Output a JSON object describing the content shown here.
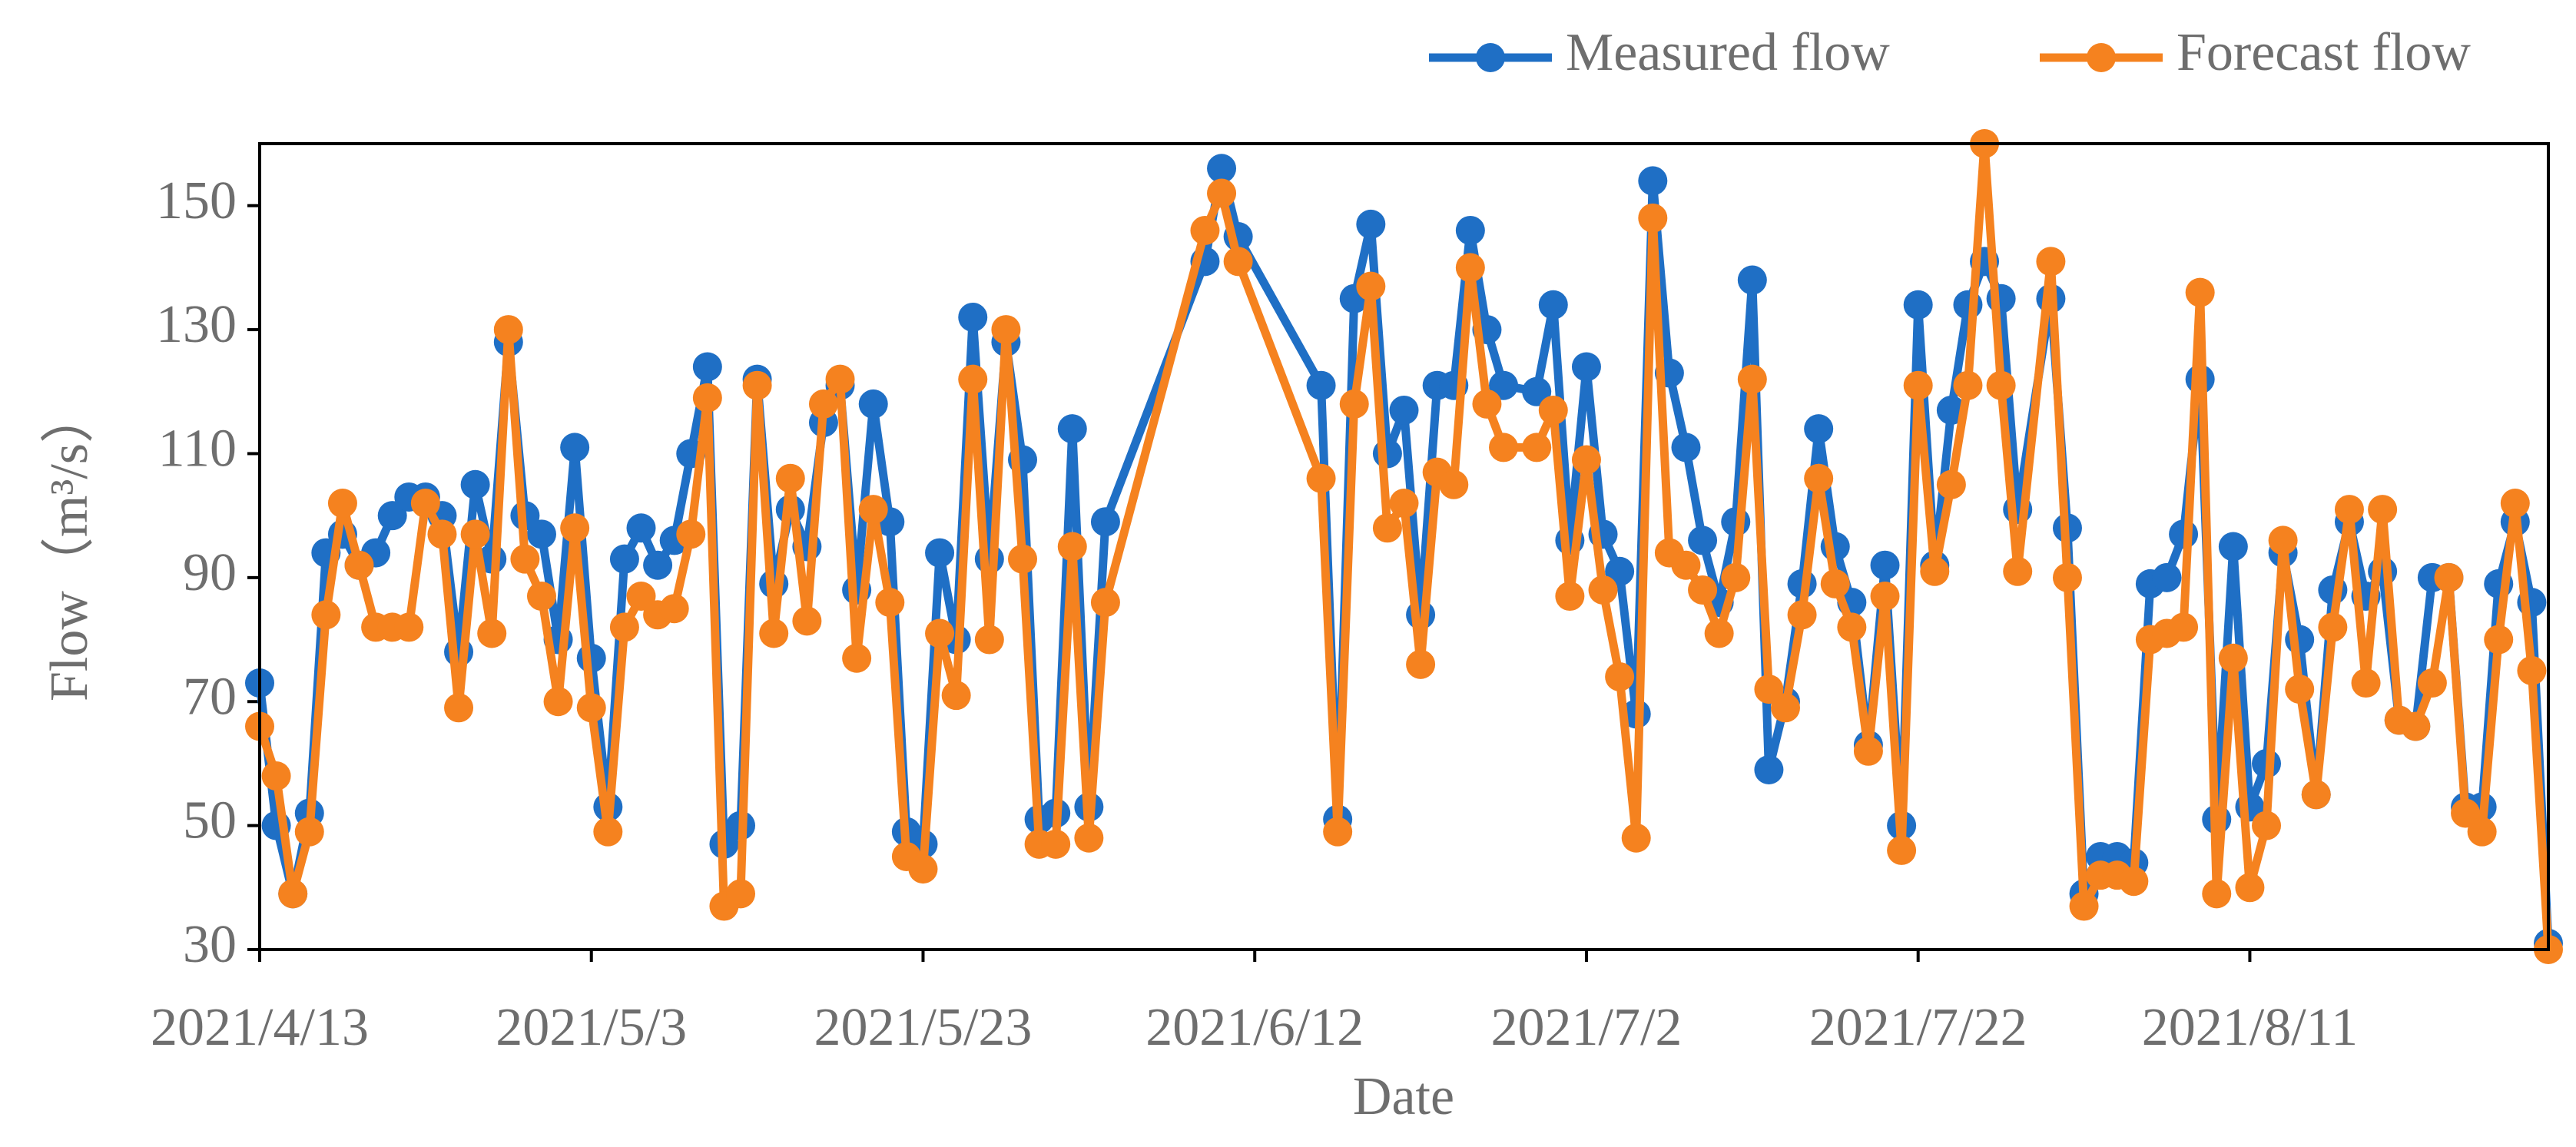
{
  "chart_data": {
    "type": "line",
    "x_label": "Date",
    "y_label": "Flow（m³/s）",
    "x": [
      "2021/4/13",
      "2021/4/14",
      "2021/4/15",
      "2021/4/16",
      "2021/4/17",
      "2021/4/18",
      "2021/4/19",
      "2021/4/20",
      "2021/4/21",
      "2021/4/22",
      "2021/4/23",
      "2021/4/24",
      "2021/4/25",
      "2021/4/26",
      "2021/4/27",
      "2021/4/28",
      "2021/4/29",
      "2021/4/30",
      "2021/5/1",
      "2021/5/2",
      "2021/5/3",
      "2021/5/4",
      "2021/5/5",
      "2021/5/6",
      "2021/5/7",
      "2021/5/8",
      "2021/5/9",
      "2021/5/10",
      "2021/5/11",
      "2021/5/12",
      "2021/5/13",
      "2021/5/14",
      "2021/5/15",
      "2021/5/16",
      "2021/5/17",
      "2021/5/18",
      "2021/5/19",
      "2021/5/20",
      "2021/5/21",
      "2021/5/22",
      "2021/5/23",
      "2021/5/24",
      "2021/5/25",
      "2021/5/26",
      "2021/5/27",
      "2021/5/28",
      "2021/5/29",
      "2021/5/30",
      "2021/5/31",
      "2021/6/1",
      "2021/6/2",
      "2021/6/3",
      "2021/6/9",
      "2021/6/10",
      "2021/6/11",
      "2021/6/16",
      "2021/6/17",
      "2021/6/18",
      "2021/6/19",
      "2021/6/20",
      "2021/6/21",
      "2021/6/22",
      "2021/6/23",
      "2021/6/24",
      "2021/6/25",
      "2021/6/26",
      "2021/6/27",
      "2021/6/29",
      "2021/6/30",
      "2021/7/1",
      "2021/7/2",
      "2021/7/3",
      "2021/7/4",
      "2021/7/5",
      "2021/7/6",
      "2021/7/7",
      "2021/7/8",
      "2021/7/9",
      "2021/7/10",
      "2021/7/11",
      "2021/7/12",
      "2021/7/13",
      "2021/7/14",
      "2021/7/15",
      "2021/7/16",
      "2021/7/17",
      "2021/7/18",
      "2021/7/19",
      "2021/7/20",
      "2021/7/21",
      "2021/7/22",
      "2021/7/23",
      "2021/7/24",
      "2021/7/25",
      "2021/7/26",
      "2021/7/27",
      "2021/7/28",
      "2021/7/30",
      "2021/7/31",
      "2021/8/1",
      "2021/8/2",
      "2021/8/3",
      "2021/8/4",
      "2021/8/5",
      "2021/8/6",
      "2021/8/7",
      "2021/8/8",
      "2021/8/9",
      "2021/8/10",
      "2021/8/11",
      "2021/8/12",
      "2021/8/13",
      "2021/8/14",
      "2021/8/15",
      "2021/8/16",
      "2021/8/17",
      "2021/8/18",
      "2021/8/19",
      "2021/8/20",
      "2021/8/21",
      "2021/8/22",
      "2021/8/23",
      "2021/8/24",
      "2021/8/25",
      "2021/8/26",
      "2021/8/27",
      "2021/8/28",
      "2021/8/29"
    ],
    "series": [
      {
        "name": "Measured flow",
        "color": "#1f6fc5",
        "values": [
          73,
          50,
          39,
          52,
          94,
          97,
          92,
          94,
          100,
          103,
          103,
          100,
          78,
          105,
          93,
          128,
          100,
          97,
          80,
          111,
          77,
          53,
          93,
          98,
          92,
          96,
          110,
          124,
          47,
          50,
          122,
          89,
          101,
          95,
          115,
          121,
          88,
          118,
          99,
          49,
          47,
          94,
          80,
          132,
          93,
          128,
          109,
          51,
          52,
          114,
          53,
          99,
          141,
          156,
          145,
          121,
          51,
          135,
          147,
          110,
          117,
          84,
          121,
          121,
          146,
          130,
          121,
          120,
          134,
          96,
          124,
          97,
          91,
          68,
          154,
          123,
          111,
          96,
          86,
          99,
          138,
          59,
          70,
          89,
          114,
          95,
          86,
          63,
          92,
          50,
          134,
          92,
          117,
          134,
          141,
          135,
          101,
          135,
          98,
          39,
          45,
          45,
          44,
          89,
          90,
          97,
          122,
          51,
          95,
          53,
          60,
          94,
          80,
          55,
          88,
          99,
          87,
          91,
          67,
          66,
          90,
          90,
          53,
          53,
          89,
          99,
          86,
          31
        ]
      },
      {
        "name": "Forecast flow",
        "color": "#f5821f",
        "values": [
          66,
          58,
          39,
          49,
          84,
          102,
          92,
          82,
          82,
          82,
          102,
          97,
          69,
          97,
          81,
          130,
          93,
          87,
          70,
          98,
          69,
          49,
          82,
          87,
          84,
          85,
          97,
          119,
          37,
          39,
          121,
          81,
          106,
          83,
          118,
          122,
          77,
          101,
          86,
          45,
          43,
          81,
          71,
          122,
          80,
          130,
          93,
          47,
          47,
          95,
          48,
          86,
          146,
          152,
          141,
          106,
          49,
          118,
          137,
          98,
          102,
          76,
          107,
          105,
          140,
          118,
          111,
          111,
          117,
          87,
          109,
          88,
          74,
          48,
          148,
          94,
          92,
          88,
          81,
          90,
          122,
          72,
          69,
          84,
          106,
          89,
          82,
          62,
          87,
          46,
          121,
          91,
          105,
          121,
          160,
          121,
          91,
          141,
          90,
          37,
          42,
          42,
          41,
          80,
          81,
          82,
          136,
          39,
          77,
          40,
          50,
          96,
          72,
          55,
          82,
          101,
          73,
          101,
          67,
          66,
          73,
          90,
          52,
          49,
          80,
          102,
          75,
          30
        ]
      }
    ],
    "xlim": [
      "2021/4/13",
      "2021/8/29"
    ],
    "xticks": [
      "2021/4/13",
      "2021/5/3",
      "2021/5/23",
      "2021/6/12",
      "2021/7/2",
      "2021/7/22",
      "2021/8/11"
    ],
    "ylim": [
      30,
      160
    ],
    "yticks": [
      30,
      50,
      70,
      90,
      110,
      130,
      150
    ],
    "legend": "top-right"
  }
}
